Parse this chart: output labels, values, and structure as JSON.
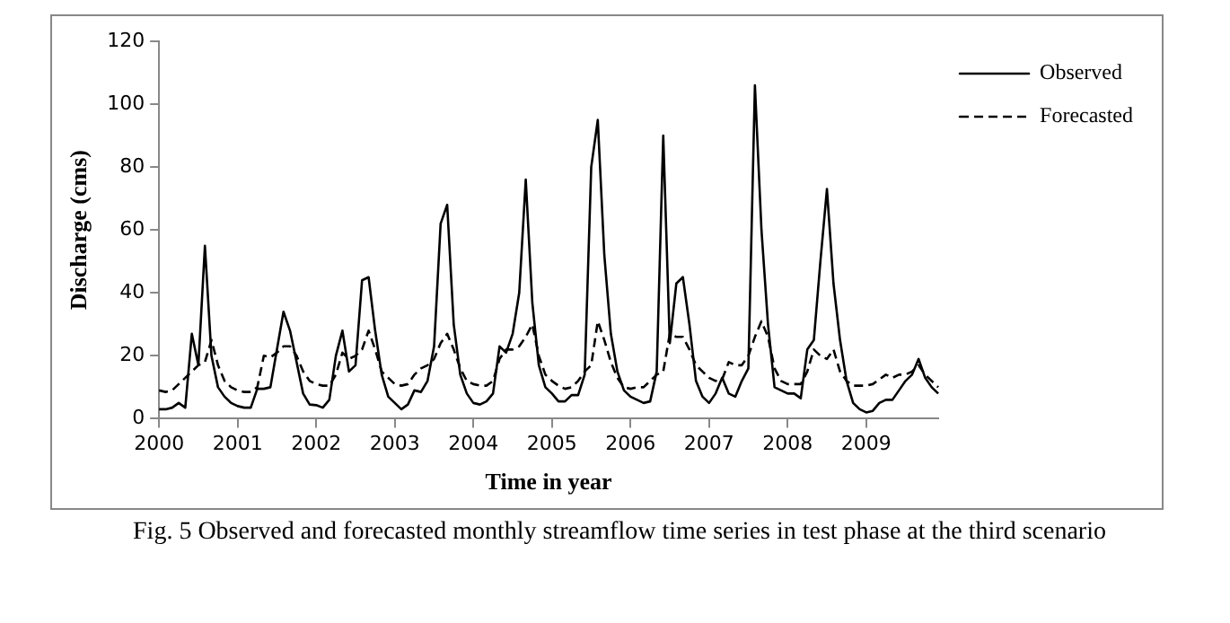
{
  "chart_data": {
    "type": "line",
    "xlabel": "Time in year",
    "ylabel": "Discharge (cms)",
    "categories": [
      "2000",
      null,
      null,
      null,
      null,
      null,
      null,
      null,
      null,
      null,
      null,
      null,
      "2001",
      null,
      null,
      null,
      null,
      null,
      null,
      null,
      null,
      null,
      null,
      null,
      "2002",
      null,
      null,
      null,
      null,
      null,
      null,
      null,
      null,
      null,
      null,
      null,
      "2003",
      null,
      null,
      null,
      null,
      null,
      null,
      null,
      null,
      null,
      null,
      null,
      "2004",
      null,
      null,
      null,
      null,
      null,
      null,
      null,
      null,
      null,
      null,
      null,
      "2005",
      null,
      null,
      null,
      null,
      null,
      null,
      null,
      null,
      null,
      null,
      null,
      "2006",
      null,
      null,
      null,
      null,
      null,
      null,
      null,
      null,
      null,
      null,
      null,
      "2007",
      null,
      null,
      null,
      null,
      null,
      null,
      null,
      null,
      null,
      null,
      null,
      "2008",
      null,
      null,
      null,
      null,
      null,
      null,
      null,
      null,
      null,
      null,
      null,
      "2009",
      null,
      null,
      null,
      null,
      null,
      null,
      null,
      null,
      null,
      null,
      null
    ],
    "series": [
      {
        "name": "Observed",
        "color": "#000000",
        "line_style": "solid",
        "values": [
          3,
          3,
          3.5,
          5,
          3.5,
          27,
          17,
          55,
          20,
          10,
          7,
          5,
          4,
          3.5,
          3.5,
          9.5,
          9.5,
          10,
          22,
          34,
          28,
          18,
          8,
          4.5,
          4.3,
          3.5,
          6,
          20,
          28,
          15,
          17,
          44,
          45,
          28,
          14,
          7,
          5,
          3,
          4.5,
          9,
          8.5,
          12,
          23,
          62,
          68,
          30,
          14,
          8,
          5,
          4.5,
          5.5,
          8,
          23,
          21,
          27,
          40,
          76,
          37,
          17,
          10,
          8,
          5.5,
          5.5,
          7.5,
          7.5,
          14,
          80,
          95,
          52,
          27,
          15,
          9,
          7,
          6,
          5,
          5.5,
          15,
          90,
          24,
          43,
          45,
          30,
          12,
          7,
          5,
          8,
          13,
          8,
          7,
          12,
          16,
          106,
          60,
          30,
          10,
          9,
          8,
          8,
          6.5,
          22,
          25,
          50,
          73,
          43,
          25,
          12,
          5,
          3,
          2,
          2.5,
          5,
          6,
          6,
          9,
          12,
          14,
          19,
          13,
          10,
          8
        ]
      },
      {
        "name": "Forecasted",
        "color": "#000000",
        "line_style": "dashed",
        "values": [
          9,
          8.5,
          9,
          11,
          13,
          15,
          17,
          18,
          25,
          17,
          12,
          10,
          9,
          8.5,
          8.5,
          10,
          20,
          19.5,
          21,
          23,
          23,
          20,
          15,
          12,
          11,
          10.5,
          10.5,
          14,
          21,
          19,
          20,
          22,
          28,
          22,
          15,
          13,
          11,
          10.5,
          11,
          14,
          16,
          17,
          19,
          24,
          27,
          22,
          16,
          12,
          11,
          10.5,
          10.5,
          12,
          19,
          22,
          22,
          23,
          26,
          30,
          20,
          14,
          12,
          10.5,
          9.5,
          10,
          12,
          15,
          17,
          31,
          25,
          18,
          13,
          10,
          9.5,
          10,
          10,
          12,
          14,
          15,
          27,
          26,
          26,
          22,
          17,
          15,
          13,
          12,
          12.5,
          18,
          17,
          17,
          20,
          26,
          31,
          26,
          16,
          12,
          11,
          11,
          11,
          15,
          22,
          20,
          19,
          22,
          15,
          12,
          10.5,
          10.5,
          10.5,
          11,
          12.5,
          14,
          13,
          14,
          14,
          15,
          17,
          14,
          12,
          10
        ]
      }
    ],
    "ylim": [
      0,
      120
    ],
    "yticks": [
      0,
      20,
      40,
      60,
      80,
      100,
      120
    ],
    "grid": false,
    "legend": "top right",
    "marker": "none",
    "annotations": [
      "Fig. 5 Observed and forecasted monthly streamflow time series in test phase at the third scenario"
    ]
  }
}
